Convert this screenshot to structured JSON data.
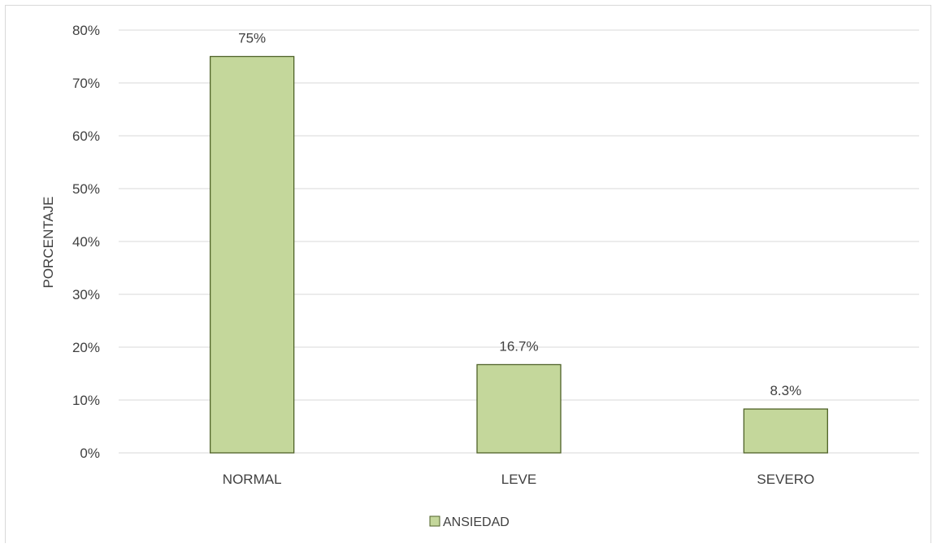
{
  "chart_data": {
    "type": "bar",
    "categories": [
      "NORMAL",
      "LEVE",
      "SEVERO"
    ],
    "series": [
      {
        "name": "ANSIEDAD",
        "values": [
          75,
          16.7,
          8.3
        ],
        "labels": [
          "75%",
          "16.7%",
          "8.3%"
        ],
        "color": "#c4d79b",
        "border_color": "#4f6228"
      }
    ],
    "ylabel": "PORCENTAJE",
    "ylim": [
      0,
      80
    ],
    "yticks": [
      0,
      10,
      20,
      30,
      40,
      50,
      60,
      70,
      80
    ],
    "ytick_labels": [
      "0%",
      "10%",
      "20%",
      "30%",
      "40%",
      "50%",
      "60%",
      "70%",
      "80%"
    ],
    "grid": true,
    "legend_position": "bottom"
  }
}
